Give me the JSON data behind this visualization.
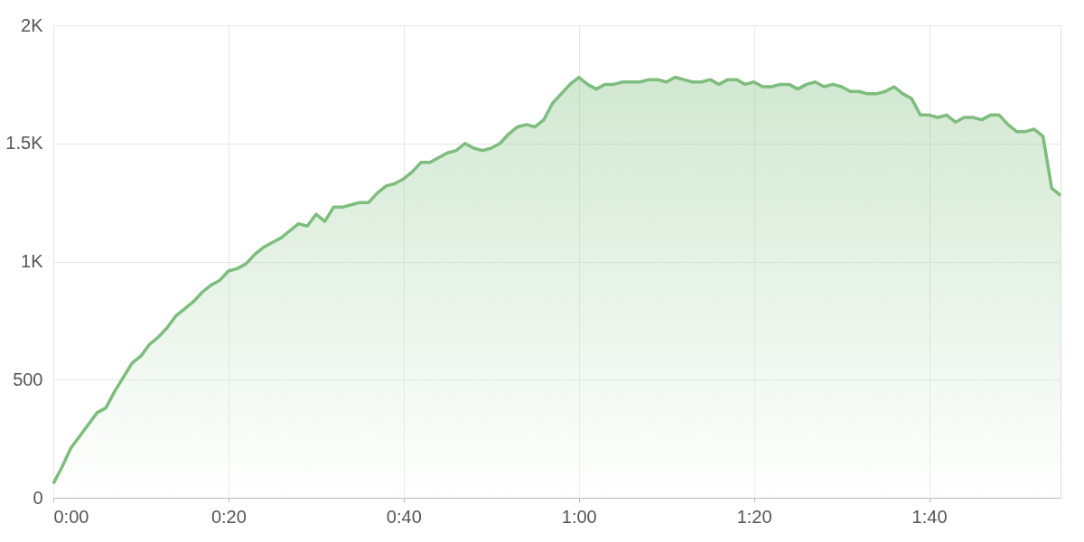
{
  "chart_data": {
    "type": "area",
    "x": [
      0,
      1,
      2,
      3,
      4,
      5,
      6,
      7,
      8,
      9,
      10,
      11,
      12,
      13,
      14,
      15,
      16,
      17,
      18,
      19,
      20,
      21,
      22,
      23,
      24,
      25,
      26,
      27,
      28,
      29,
      30,
      31,
      32,
      33,
      34,
      35,
      36,
      37,
      38,
      39,
      40,
      41,
      42,
      43,
      44,
      45,
      46,
      47,
      48,
      49,
      50,
      51,
      52,
      53,
      54,
      55,
      56,
      57,
      58,
      59,
      60,
      61,
      62,
      63,
      64,
      65,
      66,
      67,
      68,
      69,
      70,
      71,
      72,
      73,
      74,
      75,
      76,
      77,
      78,
      79,
      80,
      81,
      82,
      83,
      84,
      85,
      86,
      87,
      88,
      89,
      90,
      91,
      92,
      93,
      94,
      95,
      96,
      97,
      98,
      99,
      100,
      101,
      102,
      103,
      104,
      105,
      106,
      107,
      108,
      109,
      110,
      111,
      112,
      113,
      114,
      115
    ],
    "series": [
      {
        "color": "#7dbd7d",
        "values": [
          60,
          130,
          210,
          260,
          310,
          360,
          380,
          450,
          510,
          570,
          600,
          650,
          680,
          720,
          770,
          800,
          830,
          870,
          900,
          920,
          960,
          970,
          990,
          1030,
          1060,
          1080,
          1100,
          1130,
          1160,
          1150,
          1200,
          1170,
          1230,
          1230,
          1240,
          1250,
          1250,
          1290,
          1320,
          1330,
          1350,
          1380,
          1420,
          1420,
          1440,
          1460,
          1470,
          1500,
          1480,
          1470,
          1480,
          1500,
          1540,
          1570,
          1580,
          1570,
          1600,
          1670,
          1710,
          1750,
          1780,
          1750,
          1730,
          1750,
          1750,
          1760,
          1760,
          1760,
          1770,
          1770,
          1760,
          1780,
          1770,
          1760,
          1760,
          1770,
          1750,
          1770,
          1770,
          1750,
          1760,
          1740,
          1740,
          1750,
          1750,
          1730,
          1750,
          1760,
          1740,
          1750,
          1740,
          1720,
          1720,
          1710,
          1710,
          1720,
          1740,
          1710,
          1690,
          1620,
          1620,
          1610,
          1620,
          1590,
          1610,
          1610,
          1600,
          1620,
          1620,
          1580,
          1550,
          1550,
          1560,
          1530,
          1310,
          1280
        ]
      }
    ],
    "xlim": [
      0,
      115
    ],
    "xticks": [
      {
        "value": 0,
        "label": "0:00"
      },
      {
        "value": 20,
        "label": "0:20"
      },
      {
        "value": 40,
        "label": "0:40"
      },
      {
        "value": 60,
        "label": "1:00"
      },
      {
        "value": 80,
        "label": "1:20"
      },
      {
        "value": 100,
        "label": "1:40"
      }
    ],
    "ylim": [
      0,
      2000
    ],
    "yticks": [
      0,
      500,
      {
        "value": 1000,
        "label": "1K"
      },
      {
        "value": 1500,
        "label": "1.5K"
      },
      {
        "value": 2000,
        "label": "2K"
      }
    ],
    "grid": true,
    "line_style": "solid",
    "marker": "none"
  }
}
